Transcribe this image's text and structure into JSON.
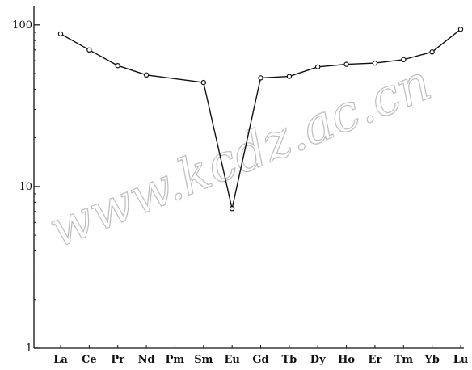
{
  "watermark": "www.kcdz.ac.cn",
  "chart_data": {
    "type": "line",
    "title": "",
    "xlabel": "",
    "ylabel": "",
    "yscale": "log",
    "ylim": [
      1,
      130
    ],
    "yticks": [
      {
        "value": 1,
        "label": "1"
      },
      {
        "value": 10,
        "label": "10"
      },
      {
        "value": 100,
        "label": "100"
      }
    ],
    "categories": [
      "La",
      "Ce",
      "Pr",
      "Nd",
      "Pm",
      "Sm",
      "Eu",
      "Gd",
      "Tb",
      "Dy",
      "Ho",
      "Er",
      "Tm",
      "Yb",
      "Lu"
    ],
    "series": [
      {
        "points": [
          {
            "x": "La",
            "y": 88
          },
          {
            "x": "Ce",
            "y": 70
          },
          {
            "x": "Pr",
            "y": 56
          },
          {
            "x": "Nd",
            "y": 49
          },
          {
            "x": "Sm",
            "y": 44
          },
          {
            "x": "Eu",
            "y": 7.3
          },
          {
            "x": "Gd",
            "y": 47
          },
          {
            "x": "Tb",
            "y": 48
          },
          {
            "x": "Dy",
            "y": 55
          },
          {
            "x": "Ho",
            "y": 57
          },
          {
            "x": "Er",
            "y": 58
          },
          {
            "x": "Tm",
            "y": 61
          },
          {
            "x": "Yb",
            "y": 68
          },
          {
            "x": "Lu",
            "y": 94
          }
        ]
      }
    ],
    "grid": false,
    "legend": "none",
    "colors": {
      "line": "#111111",
      "marker_fill": "#ffffff"
    }
  }
}
